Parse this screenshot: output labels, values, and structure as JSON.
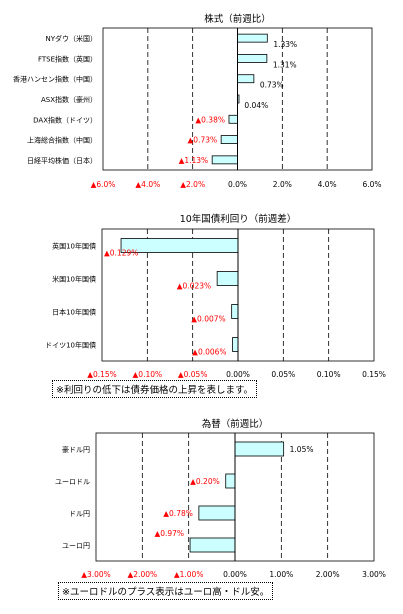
{
  "chart_data": [
    {
      "type": "bar",
      "orientation": "horizontal",
      "title": "株式（前週比）",
      "categories": [
        "NYダウ（米国）",
        "FTSE指数（英国）",
        "香港ハンセン指数（中国）",
        "ASX指数（豪州）",
        "DAX指数（ドイツ）",
        "上海総合指数（中国）",
        "日経平均株価（日本）"
      ],
      "values": [
        1.33,
        1.31,
        0.73,
        0.04,
        -0.38,
        -0.73,
        -1.13
      ],
      "data_labels": [
        "1.33%",
        "1.31%",
        "0.73%",
        "0.04%",
        "▲0.38%",
        "▲0.73%",
        "▲1.13%"
      ],
      "xlim": [
        -6,
        6
      ],
      "xticks": [
        -6,
        -4,
        -2,
        0,
        2,
        4,
        6
      ],
      "xtick_labels": [
        "▲6.0%",
        "▲4.0%",
        "▲2.0%",
        "0.0%",
        "2.0%",
        "4.0%",
        "6.0%"
      ],
      "grid": "vertical-dashed",
      "bar_color": "#ccffff",
      "negative_label_color": "#ff0000"
    },
    {
      "type": "bar",
      "orientation": "horizontal",
      "title": "10年国債利回り（前週差）",
      "categories": [
        "英国10年国債",
        "米国10年国債",
        "日本10年国債",
        "ドイツ10年国債"
      ],
      "values": [
        -0.129,
        -0.023,
        -0.007,
        -0.006
      ],
      "data_labels": [
        "▲0.129%",
        "▲0.023%",
        "▲0.007%",
        "▲0.006%"
      ],
      "xlim": [
        -0.15,
        0.15
      ],
      "xticks": [
        -0.15,
        -0.1,
        -0.05,
        0,
        0.05,
        0.1,
        0.15
      ],
      "xtick_labels": [
        "▲0.15%",
        "▲0.10%",
        "▲0.05%",
        "0.00%",
        "0.05%",
        "0.10%",
        "0.15%"
      ],
      "grid": "vertical-dashed",
      "bar_color": "#ccffff",
      "negative_label_color": "#ff0000",
      "note": "※利回りの低下は債券価格の上昇を表します。"
    },
    {
      "type": "bar",
      "orientation": "horizontal",
      "title": "為替（前週比）",
      "categories": [
        "豪ドル円",
        "ユーロドル",
        "ドル円",
        "ユーロ円"
      ],
      "values": [
        1.05,
        -0.2,
        -0.78,
        -0.97
      ],
      "data_labels": [
        "1.05%",
        "▲0.20%",
        "▲0.78%",
        "▲0.97%"
      ],
      "xlim": [
        -3,
        3
      ],
      "xticks": [
        -3,
        -2,
        -1,
        0,
        1,
        2,
        3
      ],
      "xtick_labels": [
        "▲3.00%",
        "▲2.00%",
        "▲1.00%",
        "0.00%",
        "1.00%",
        "2.00%",
        "3.00%"
      ],
      "grid": "vertical-dashed",
      "bar_color": "#ccffff",
      "negative_label_color": "#ff0000",
      "note": "※ユーロドルのプラス表示はユーロ高・ドル安。"
    }
  ]
}
